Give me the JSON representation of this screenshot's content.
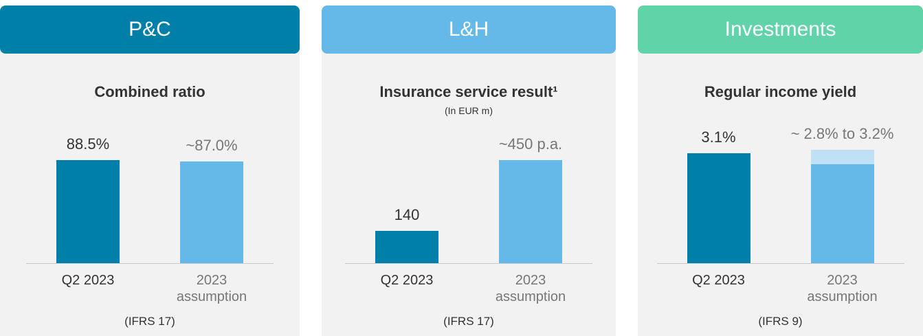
{
  "chart_data": [
    {
      "type": "bar",
      "header": "P&C",
      "header_color": "#0080a8",
      "title": "Combined ratio",
      "note": "(IFRS 17)",
      "categories": [
        "Q2 2023",
        "2023 assumption"
      ],
      "values": [
        88.5,
        87.0
      ],
      "value_labels": [
        "88.5%",
        "~87.0%"
      ],
      "colors": [
        "#0080a8",
        "#64b9e8"
      ],
      "ylim": [
        0,
        100
      ]
    },
    {
      "type": "bar",
      "header": "L&H",
      "header_color": "#64b9e8",
      "title": "Insurance service result¹",
      "subtitle": "(In EUR m)",
      "note": "(IFRS 17)",
      "categories": [
        "Q2 2023",
        "2023 assumption"
      ],
      "values": [
        140,
        450
      ],
      "value_labels": [
        "140",
        "~450 p.a."
      ],
      "colors": [
        "#0080a8",
        "#64b9e8"
      ],
      "ylim": [
        0,
        510
      ]
    },
    {
      "type": "range_bar",
      "header": "Investments",
      "header_color": "#60d4a8",
      "title": "Regular income yield",
      "note": "(IFRS 9)",
      "categories": [
        "Q2 2023",
        "2023 assumption"
      ],
      "values": [
        3.1,
        2.8
      ],
      "high": [
        null,
        3.2
      ],
      "value_labels": [
        "3.1%",
        "~ 2.8% to 3.2%"
      ],
      "colors": [
        "#0080a8",
        "#64b9e8"
      ],
      "range_color": "#bfe0f5",
      "ylim": [
        0,
        3.3
      ]
    }
  ]
}
